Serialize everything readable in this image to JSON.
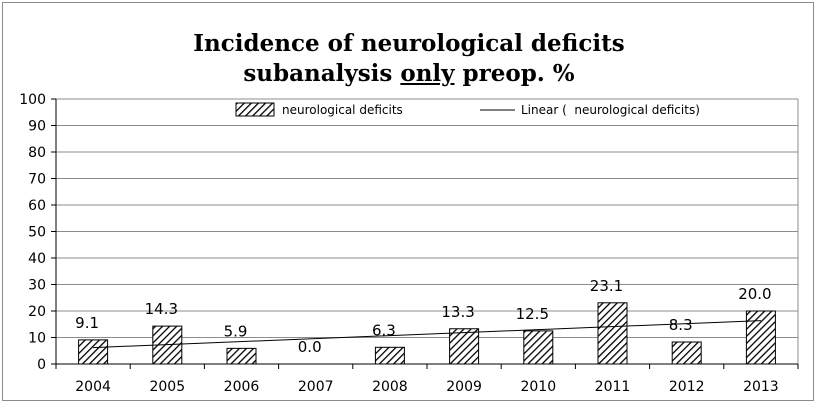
{
  "chart_data": {
    "type": "bar",
    "title_line1": "Incidence of neurological deficits",
    "title_line2_pre": "subanalysis ",
    "title_line2_underlined": "only",
    "title_line2_post": " preop. %",
    "categories": [
      "2004",
      "2005",
      "2006",
      "2007",
      "2008",
      "2009",
      "2010",
      "2011",
      "2012",
      "2013"
    ],
    "series": [
      {
        "name": "neurological deficits",
        "values": [
          9.1,
          14.3,
          5.9,
          0.0,
          6.3,
          13.3,
          12.5,
          23.1,
          8.3,
          20.0
        ],
        "data_labels": [
          "9.1",
          "14.3",
          "5.9",
          "0.0",
          "6.3",
          "13.3",
          "12.5",
          "23.1",
          "8.3",
          "20.0"
        ],
        "fill": "diagonal-hatch",
        "color": "#000000"
      }
    ],
    "trendline": {
      "type": "linear",
      "name": "Linear (  neurological deficits)",
      "color": "#000000"
    },
    "ylim": [
      0,
      100
    ],
    "yticks": [
      "0",
      "10",
      "20",
      "30",
      "40",
      "50",
      "60",
      "70",
      "80",
      "90",
      "100"
    ],
    "grid": true,
    "legend_position": "top"
  }
}
